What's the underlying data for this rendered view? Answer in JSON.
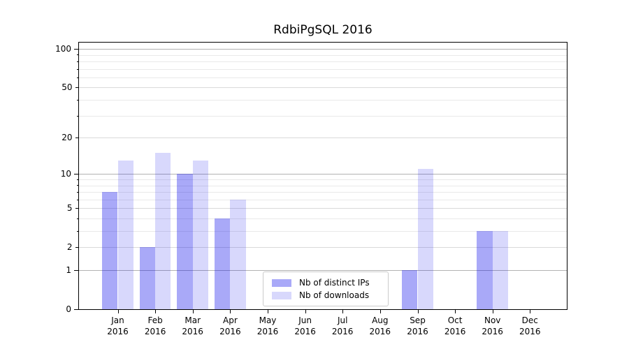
{
  "chart_data": {
    "type": "bar",
    "title": "RdbiPgSQL 2016",
    "categories": [
      "Jan",
      "Feb",
      "Mar",
      "Apr",
      "May",
      "Jun",
      "Jul",
      "Aug",
      "Sep",
      "Oct",
      "Nov",
      "Dec"
    ],
    "year_label": "2016",
    "series": [
      {
        "name": "Nb of distinct IPs",
        "key": "distinct-ips",
        "color_hex": "#a9a9f8",
        "color_rgba": "rgba(10,10,235,0.35)",
        "values": [
          7,
          2,
          10,
          4,
          0,
          0,
          0,
          0,
          1,
          0,
          3,
          0
        ]
      },
      {
        "name": "Nb of downloads",
        "key": "downloads",
        "color_hex": "#d8d8fb",
        "color_rgba": "rgba(10,10,235,0.16)",
        "values": [
          13,
          15,
          13,
          6,
          0,
          0,
          0,
          0,
          11,
          0,
          3,
          0
        ]
      }
    ],
    "y_axis": {
      "scale": "log10(1+value)",
      "ticks_labeled": [
        0,
        1,
        2,
        5,
        10,
        20,
        50,
        100
      ],
      "ticks_major": [
        1,
        10,
        100
      ],
      "ticks_minor": [
        3,
        4,
        6,
        7,
        8,
        9,
        30,
        40,
        60,
        70,
        80,
        90
      ],
      "ylim": [
        0,
        112
      ]
    },
    "x_axis": {
      "tick_label_lines": 2
    },
    "grid": {
      "enabled": true,
      "major_color": "#b2b2b2",
      "minor_color": "#e9e9e9"
    },
    "legend_position": "lower center",
    "plot_background": "#ffffff"
  }
}
